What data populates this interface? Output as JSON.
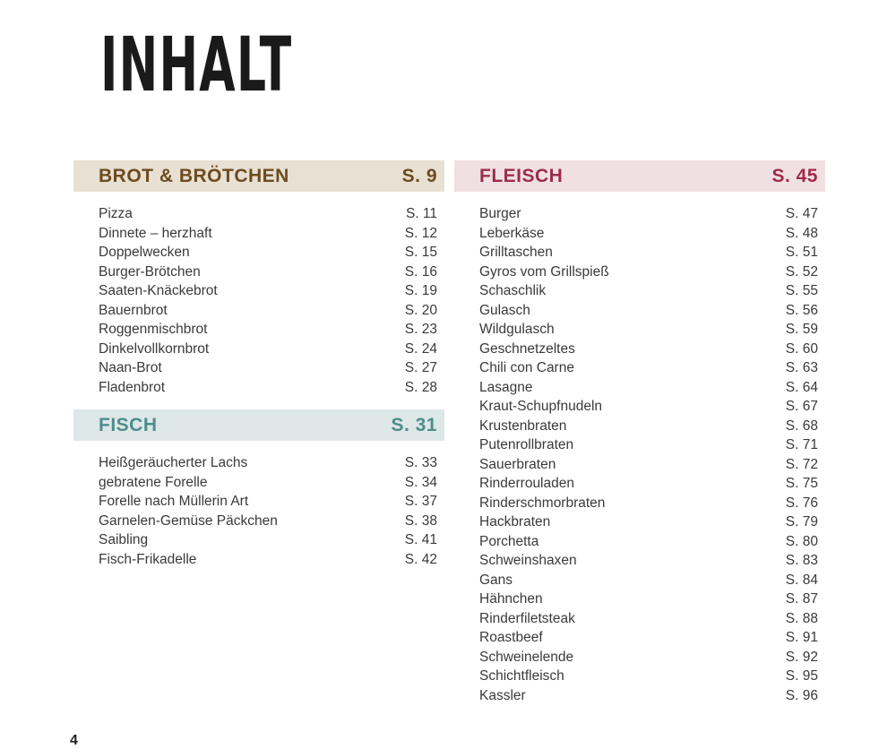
{
  "title": "INHALT",
  "page_number": "4",
  "colors": {
    "brot_bg": "#e7e0d3",
    "brot_text": "#6e4b1f",
    "fisch_bg": "#dde7e7",
    "fisch_text": "#4f8c8c",
    "fleisch_bg": "#f1e0e3",
    "fleisch_text": "#9c2d4a"
  },
  "sections": {
    "brot": {
      "title": "BROT & BRÖTCHEN",
      "page": "S. 9",
      "items": [
        {
          "name": "Pizza",
          "page": "S. 11"
        },
        {
          "name": "Dinnete – herzhaft",
          "page": "S. 12"
        },
        {
          "name": "Doppelwecken",
          "page": "S. 15"
        },
        {
          "name": "Burger-Brötchen",
          "page": "S. 16"
        },
        {
          "name": "Saaten-Knäckebrot",
          "page": "S. 19"
        },
        {
          "name": "Bauernbrot",
          "page": "S. 20"
        },
        {
          "name": "Roggenmischbrot",
          "page": "S. 23"
        },
        {
          "name": "Dinkelvollkornbrot",
          "page": "S. 24"
        },
        {
          "name": "Naan-Brot",
          "page": "S. 27"
        },
        {
          "name": "Fladenbrot",
          "page": "S. 28"
        }
      ]
    },
    "fisch": {
      "title": "FISCH",
      "page": "S. 31",
      "items": [
        {
          "name": "Heißgeräucherter Lachs",
          "page": "S. 33"
        },
        {
          "name": "gebratene Forelle",
          "page": "S. 34"
        },
        {
          "name": "Forelle nach Müllerin Art",
          "page": "S. 37"
        },
        {
          "name": "Garnelen-Gemüse Päckchen",
          "page": "S. 38"
        },
        {
          "name": "Saibling",
          "page": "S. 41"
        },
        {
          "name": "Fisch-Frikadelle",
          "page": "S. 42"
        }
      ]
    },
    "fleisch": {
      "title": "FLEISCH",
      "page": "S. 45",
      "items": [
        {
          "name": "Burger",
          "page": "S. 47"
        },
        {
          "name": "Leberkäse",
          "page": "S. 48"
        },
        {
          "name": "Grilltaschen",
          "page": "S. 51"
        },
        {
          "name": "Gyros vom Grillspieß",
          "page": "S. 52"
        },
        {
          "name": "Schaschlik",
          "page": "S. 55"
        },
        {
          "name": "Gulasch",
          "page": "S. 56"
        },
        {
          "name": "Wildgulasch",
          "page": "S. 59"
        },
        {
          "name": "Geschnetzeltes",
          "page": "S. 60"
        },
        {
          "name": "Chili con Carne",
          "page": "S. 63"
        },
        {
          "name": "Lasagne",
          "page": "S. 64"
        },
        {
          "name": "Kraut-Schupfnudeln",
          "page": "S. 67"
        },
        {
          "name": "Krustenbraten",
          "page": "S. 68"
        },
        {
          "name": "Putenrollbraten",
          "page": "S. 71"
        },
        {
          "name": "Sauerbraten",
          "page": "S. 72"
        },
        {
          "name": "Rinderrouladen",
          "page": "S. 75"
        },
        {
          "name": "Rinderschmorbraten",
          "page": "S. 76"
        },
        {
          "name": "Hackbraten",
          "page": "S. 79"
        },
        {
          "name": "Porchetta",
          "page": "S. 80"
        },
        {
          "name": "Schweinshaxen",
          "page": "S. 83"
        },
        {
          "name": "Gans",
          "page": "S. 84"
        },
        {
          "name": "Hähnchen",
          "page": "S. 87"
        },
        {
          "name": "Rinderfiletsteak",
          "page": "S. 88"
        },
        {
          "name": "Roastbeef",
          "page": "S. 91"
        },
        {
          "name": "Schweinelende",
          "page": "S. 92"
        },
        {
          "name": "Schichtfleisch",
          "page": "S. 95"
        },
        {
          "name": "Kassler",
          "page": "S. 96"
        }
      ]
    }
  }
}
